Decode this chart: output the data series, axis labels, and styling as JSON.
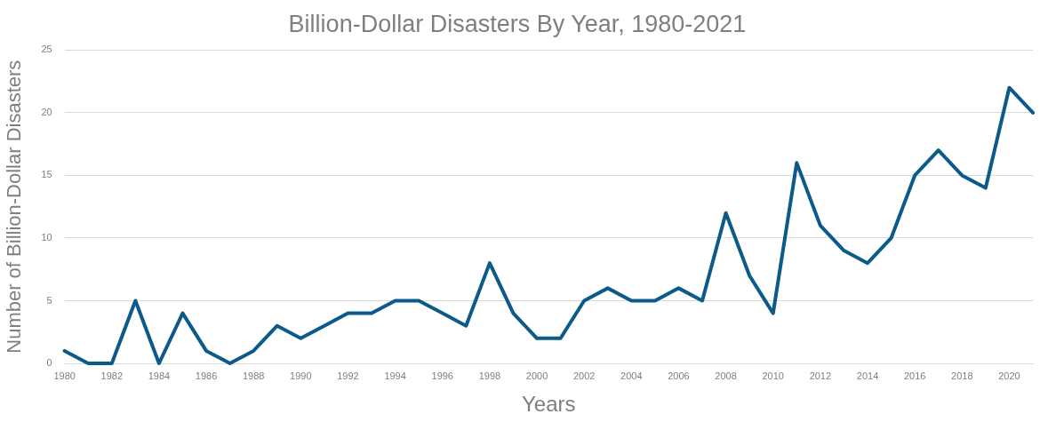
{
  "chart_data": {
    "type": "line",
    "title": "Billion-Dollar Disasters By Year, 1980-2021",
    "xlabel": "Years",
    "ylabel": "Number of Billion-Dollar Disasters",
    "categories": [
      "1980",
      null,
      "1982",
      null,
      "1984",
      null,
      "1986",
      null,
      "1988",
      null,
      "1990",
      null,
      "1992",
      null,
      "1994",
      null,
      "1996",
      null,
      "1998",
      null,
      "2000",
      null,
      "2002",
      null,
      "2004",
      null,
      "2006",
      null,
      "2008",
      null,
      "2010",
      null,
      "2012",
      null,
      "2014",
      null,
      "2016",
      null,
      "2018",
      null,
      "2020",
      null
    ],
    "series": [
      {
        "color": "#0c5a8a",
        "values": [
          1,
          0,
          0,
          5,
          0,
          4,
          1,
          0,
          1,
          3,
          2,
          3,
          4,
          4,
          5,
          5,
          4,
          3,
          8,
          4,
          2,
          2,
          5,
          6,
          5,
          5,
          6,
          5,
          12,
          7,
          4,
          16,
          11,
          9,
          8,
          10,
          15,
          17,
          15,
          14,
          22,
          20
        ]
      }
    ],
    "ylim": [
      0,
      25
    ],
    "yticks": [
      0,
      5,
      10,
      15,
      20,
      25
    ],
    "grid": "y",
    "legend": false,
    "marker": "none",
    "line_style": "solid"
  }
}
